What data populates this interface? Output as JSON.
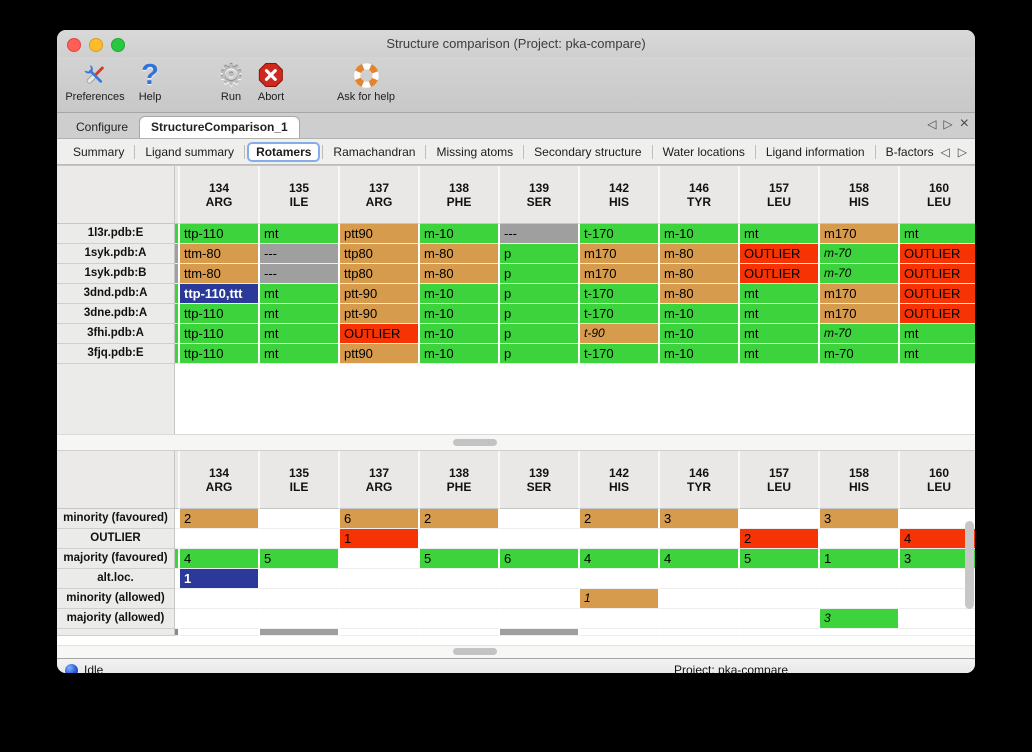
{
  "window": {
    "title": "Structure comparison (Project: pka-compare)"
  },
  "toolbar": {
    "items": [
      {
        "label": "Preferences",
        "icon": "tools-icon"
      },
      {
        "label": "Help",
        "icon": "question-icon"
      },
      {
        "label": "Run",
        "icon": "gear-icon"
      },
      {
        "label": "Abort",
        "icon": "stop-icon"
      },
      {
        "label": "Ask for help",
        "icon": "lifebuoy-icon"
      }
    ]
  },
  "tabs": {
    "main": [
      {
        "label": "Configure",
        "active": false
      },
      {
        "label": "StructureComparison_1",
        "active": true
      }
    ],
    "sub": [
      "Summary",
      "Ligand summary",
      "Rotamers",
      "Ramachandran",
      "Missing atoms",
      "Secondary structure",
      "Water locations",
      "Ligand information",
      "B-factors"
    ],
    "active_sub": "Rotamers"
  },
  "columns": [
    {
      "num": "134",
      "res": "ARG"
    },
    {
      "num": "135",
      "res": "ILE"
    },
    {
      "num": "137",
      "res": "ARG"
    },
    {
      "num": "138",
      "res": "PHE"
    },
    {
      "num": "139",
      "res": "SER"
    },
    {
      "num": "142",
      "res": "HIS"
    },
    {
      "num": "146",
      "res": "TYR"
    },
    {
      "num": "157",
      "res": "LEU"
    },
    {
      "num": "158",
      "res": "HIS"
    },
    {
      "num": "160",
      "res": "LEU"
    }
  ],
  "upper": {
    "rows": [
      {
        "label": "1l3r.pdb:E",
        "sliver": "g",
        "cells": [
          [
            "ttp-110",
            "g"
          ],
          [
            "mt",
            "g"
          ],
          [
            "ptt90",
            "o"
          ],
          [
            "m-10",
            "g"
          ],
          [
            "---",
            "gy"
          ],
          [
            "t-170",
            "g"
          ],
          [
            "m-10",
            "g"
          ],
          [
            "mt",
            "g"
          ],
          [
            "m170",
            "o"
          ],
          [
            "mt",
            "g"
          ]
        ]
      },
      {
        "label": "1syk.pdb:A",
        "sliver": "gy",
        "cells": [
          [
            "ttm-80",
            "o"
          ],
          [
            "---",
            "gy"
          ],
          [
            "ttp80",
            "o"
          ],
          [
            "m-80",
            "o"
          ],
          [
            "p",
            "g"
          ],
          [
            "m170",
            "o"
          ],
          [
            "m-80",
            "o"
          ],
          [
            "OUTLIER",
            "r"
          ],
          [
            "m-70",
            "g",
            "i"
          ],
          [
            "OUTLIER",
            "r"
          ]
        ]
      },
      {
        "label": "1syk.pdb:B",
        "sliver": "gy",
        "cells": [
          [
            "ttm-80",
            "o"
          ],
          [
            "---",
            "gy"
          ],
          [
            "ttp80",
            "o"
          ],
          [
            "m-80",
            "o"
          ],
          [
            "p",
            "g"
          ],
          [
            "m170",
            "o"
          ],
          [
            "m-80",
            "o"
          ],
          [
            "OUTLIER",
            "r"
          ],
          [
            "m-70",
            "g",
            "i"
          ],
          [
            "OUTLIER",
            "r"
          ]
        ]
      },
      {
        "label": "3dnd.pdb:A",
        "sliver": "g",
        "cells": [
          [
            "ttp-110,ttt",
            "b"
          ],
          [
            "mt",
            "g"
          ],
          [
            "ptt-90",
            "o"
          ],
          [
            "m-10",
            "g"
          ],
          [
            "p",
            "g"
          ],
          [
            "t-170",
            "g"
          ],
          [
            "m-80",
            "o"
          ],
          [
            "mt",
            "g"
          ],
          [
            "m170",
            "o"
          ],
          [
            "OUTLIER",
            "r"
          ]
        ]
      },
      {
        "label": "3dne.pdb:A",
        "sliver": "g",
        "cells": [
          [
            "ttp-110",
            "g"
          ],
          [
            "mt",
            "g"
          ],
          [
            "ptt-90",
            "o"
          ],
          [
            "m-10",
            "g"
          ],
          [
            "p",
            "g"
          ],
          [
            "t-170",
            "g"
          ],
          [
            "m-10",
            "g"
          ],
          [
            "mt",
            "g"
          ],
          [
            "m170",
            "o"
          ],
          [
            "OUTLIER",
            "r"
          ]
        ]
      },
      {
        "label": "3fhi.pdb:A",
        "sliver": "g",
        "cells": [
          [
            "ttp-110",
            "g"
          ],
          [
            "mt",
            "g"
          ],
          [
            "OUTLIER",
            "r"
          ],
          [
            "m-10",
            "g"
          ],
          [
            "p",
            "g"
          ],
          [
            "t-90",
            "o",
            "i"
          ],
          [
            "m-10",
            "g"
          ],
          [
            "mt",
            "g"
          ],
          [
            "m-70",
            "g",
            "i"
          ],
          [
            "mt",
            "g"
          ]
        ]
      },
      {
        "label": "3fjq.pdb:E",
        "sliver": "g",
        "cells": [
          [
            "ttp-110",
            "g"
          ],
          [
            "mt",
            "g"
          ],
          [
            "ptt90",
            "o"
          ],
          [
            "m-10",
            "g"
          ],
          [
            "p",
            "g"
          ],
          [
            "t-170",
            "g"
          ],
          [
            "m-10",
            "g"
          ],
          [
            "mt",
            "g"
          ],
          [
            "m-70",
            "g"
          ],
          [
            "mt",
            "g"
          ]
        ]
      }
    ]
  },
  "lower": {
    "rows": [
      {
        "label": "minority (favoured)",
        "sliver": "w",
        "cells": [
          [
            "2",
            "o"
          ],
          [
            "",
            "w"
          ],
          [
            "6",
            "o"
          ],
          [
            "2",
            "o"
          ],
          [
            "",
            "w"
          ],
          [
            "2",
            "o"
          ],
          [
            "3",
            "o"
          ],
          [
            "",
            "w"
          ],
          [
            "3",
            "o"
          ],
          [
            "",
            "w"
          ]
        ]
      },
      {
        "label": "OUTLIER",
        "sliver": "w",
        "cells": [
          [
            "",
            "w"
          ],
          [
            "",
            "w"
          ],
          [
            "1",
            "r"
          ],
          [
            "",
            "w"
          ],
          [
            "",
            "w"
          ],
          [
            "",
            "w"
          ],
          [
            "",
            "w"
          ],
          [
            "2",
            "r"
          ],
          [
            "",
            "w"
          ],
          [
            "4",
            "r"
          ]
        ]
      },
      {
        "label": "majority (favoured)",
        "sliver": "g",
        "cells": [
          [
            "4",
            "g"
          ],
          [
            "5",
            "g"
          ],
          [
            "",
            "w"
          ],
          [
            "5",
            "g"
          ],
          [
            "6",
            "g"
          ],
          [
            "4",
            "g"
          ],
          [
            "4",
            "g"
          ],
          [
            "5",
            "g"
          ],
          [
            "1",
            "g"
          ],
          [
            "3",
            "g"
          ]
        ]
      },
      {
        "label": "alt.loc.",
        "sliver": "w",
        "cells": [
          [
            "1",
            "b"
          ],
          [
            "",
            "w"
          ],
          [
            "",
            "w"
          ],
          [
            "",
            "w"
          ],
          [
            "",
            "w"
          ],
          [
            "",
            "w"
          ],
          [
            "",
            "w"
          ],
          [
            "",
            "w"
          ],
          [
            "",
            "w"
          ],
          [
            "",
            "w"
          ]
        ]
      },
      {
        "label": "minority (allowed)",
        "sliver": "w",
        "cells": [
          [
            "",
            "w"
          ],
          [
            "",
            "w"
          ],
          [
            "",
            "w"
          ],
          [
            "",
            "w"
          ],
          [
            "",
            "w"
          ],
          [
            "1",
            "o",
            "i"
          ],
          [
            "",
            "w"
          ],
          [
            "",
            "w"
          ],
          [
            "",
            "w"
          ],
          [
            "",
            "w"
          ]
        ]
      },
      {
        "label": "majority (allowed)",
        "sliver": "w",
        "cells": [
          [
            "",
            "w"
          ],
          [
            "",
            "w"
          ],
          [
            "",
            "w"
          ],
          [
            "",
            "w"
          ],
          [
            "",
            "w"
          ],
          [
            "",
            "w"
          ],
          [
            "",
            "w"
          ],
          [
            "",
            "w"
          ],
          [
            "3",
            "g",
            "i"
          ],
          [
            "",
            "w"
          ]
        ]
      }
    ],
    "partial": [
      "gyd",
      "w",
      "gy",
      "w",
      "w",
      "gy",
      "w",
      "w",
      "w",
      "w",
      "w"
    ]
  },
  "status": {
    "left": "Idle",
    "right": "Project: pka-compare"
  },
  "colors": {
    "g": "#3dd33d",
    "o": "#d79b4e",
    "r": "#f63305",
    "gy": "#9f9f9f",
    "gyd": "#8a8a8a",
    "b": "#2b3a99",
    "w": "#ffffff"
  }
}
